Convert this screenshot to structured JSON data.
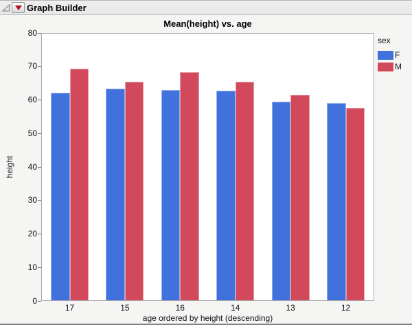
{
  "window": {
    "title": "Graph Builder"
  },
  "icons": {
    "disclosure": "open-disclosure-triangle",
    "menu": "red-triangle-menu"
  },
  "chart_data": {
    "type": "bar",
    "title": "Mean(height) vs. age",
    "categories": [
      "17",
      "15",
      "16",
      "14",
      "13",
      "12"
    ],
    "series": [
      {
        "name": "F",
        "color": "#4171DD",
        "values": [
          62.0,
          63.1,
          62.7,
          62.6,
          59.2,
          58.8
        ]
      },
      {
        "name": "M",
        "color": "#D2495B",
        "values": [
          69.1,
          65.2,
          68.1,
          65.3,
          61.3,
          57.4
        ]
      }
    ],
    "xlabel": "age ordered by height (descending)",
    "ylabel": "height",
    "ylim": [
      0,
      80
    ],
    "ytick_step": 10,
    "legend_title": "sex",
    "legend_position": "right",
    "grid": false
  }
}
